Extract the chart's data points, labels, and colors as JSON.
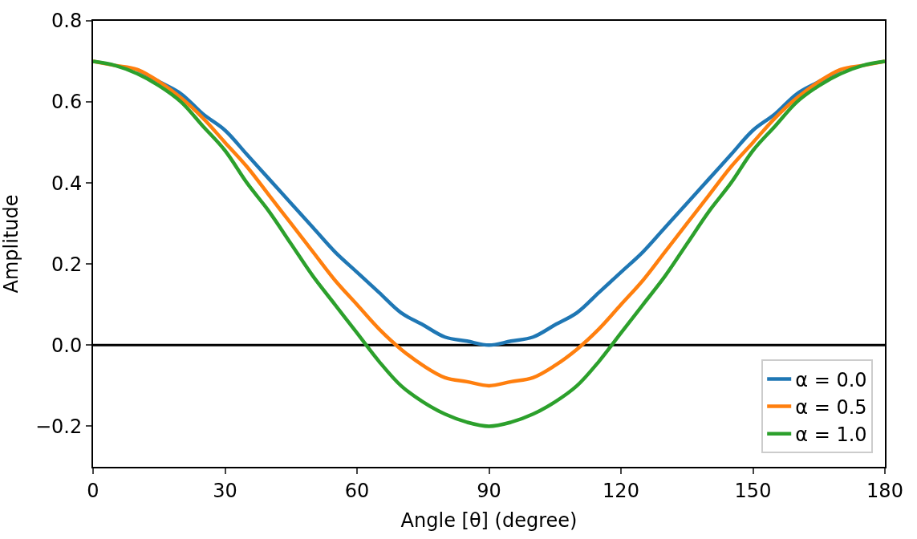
{
  "chart_data": {
    "type": "line",
    "xlabel": "Angle [θ] (degree)",
    "ylabel": "Amplitude",
    "x": [
      0,
      5,
      10,
      15,
      20,
      25,
      30,
      35,
      40,
      45,
      50,
      55,
      60,
      65,
      70,
      75,
      80,
      85,
      90,
      95,
      100,
      105,
      110,
      115,
      120,
      125,
      130,
      135,
      140,
      145,
      150,
      155,
      160,
      165,
      170,
      175,
      180
    ],
    "series": [
      {
        "name": "α = 0.0",
        "color": "#1f77b4",
        "values": [
          null,
          null,
          0.68,
          0.65,
          0.62,
          0.57,
          0.53,
          0.47,
          0.41,
          0.35,
          0.29,
          0.23,
          0.18,
          0.13,
          0.08,
          0.05,
          0.02,
          0.01,
          0.0,
          0.01,
          0.02,
          0.05,
          0.08,
          0.13,
          0.18,
          0.23,
          0.29,
          0.35,
          0.41,
          0.47,
          0.53,
          0.57,
          0.62,
          0.65,
          0.68,
          null,
          null
        ]
      },
      {
        "name": "α = 0.5",
        "color": "#ff7f0e",
        "values": [
          0.7,
          0.69,
          0.68,
          0.65,
          0.61,
          0.56,
          0.5,
          0.44,
          0.37,
          0.3,
          0.23,
          0.16,
          0.1,
          0.04,
          -0.01,
          -0.05,
          -0.08,
          -0.09,
          -0.1,
          -0.09,
          -0.08,
          -0.05,
          -0.01,
          0.04,
          0.1,
          0.16,
          0.23,
          0.3,
          0.37,
          0.44,
          0.5,
          0.56,
          0.61,
          0.65,
          0.68,
          0.69,
          0.7
        ]
      },
      {
        "name": "α = 1.0",
        "color": "#2ca02c",
        "values": [
          0.7,
          0.69,
          0.67,
          0.64,
          0.6,
          0.54,
          0.48,
          0.4,
          0.33,
          0.25,
          0.17,
          0.1,
          0.03,
          -0.04,
          -0.1,
          -0.14,
          -0.17,
          -0.19,
          -0.2,
          -0.19,
          -0.17,
          -0.14,
          -0.1,
          -0.04,
          0.03,
          0.1,
          0.17,
          0.25,
          0.33,
          0.4,
          0.48,
          0.54,
          0.6,
          0.64,
          0.67,
          0.69,
          0.7
        ]
      }
    ],
    "xlim": [
      0,
      180
    ],
    "xticks": [
      0,
      30,
      60,
      90,
      120,
      150,
      180
    ],
    "ylim": [
      -0.3,
      0.8
    ],
    "yticks": [
      {
        "value": -0.2,
        "label": "−0.2"
      },
      {
        "value": 0,
        "label": "0.0"
      },
      0.2,
      0.4,
      0.6,
      0.8
    ],
    "ref_lines": [
      {
        "axis": "y",
        "value": 0,
        "color": "#000000"
      }
    ],
    "legend": "bottom right",
    "grid": false,
    "marker": "none",
    "line_style": "solid"
  }
}
